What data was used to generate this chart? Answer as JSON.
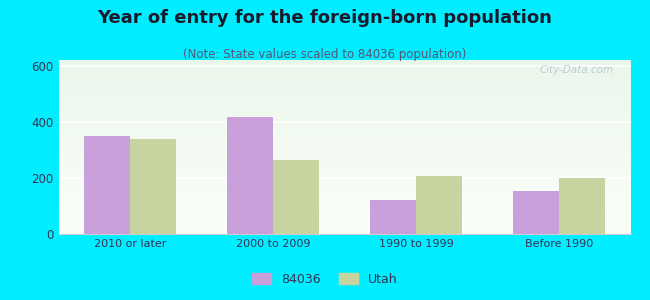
{
  "title": "Year of entry for the foreign-born population",
  "subtitle": "(Note: State values scaled to 84036 population)",
  "categories": [
    "2010 or later",
    "2000 to 2009",
    "1990 to 1999",
    "Before 1990"
  ],
  "values_84036": [
    350,
    418,
    120,
    152
  ],
  "values_utah": [
    338,
    262,
    208,
    198
  ],
  "bar_color_84036": "#c9a0dc",
  "bar_color_utah": "#c8d4a0",
  "ylim": [
    0,
    620
  ],
  "yticks": [
    0,
    200,
    400,
    600
  ],
  "background_outer": "#00eeff",
  "title_fontsize": 13,
  "subtitle_fontsize": 8.5,
  "legend_label_84036": "84036",
  "legend_label_utah": "Utah",
  "bar_width": 0.32,
  "watermark": "City-Data.com"
}
